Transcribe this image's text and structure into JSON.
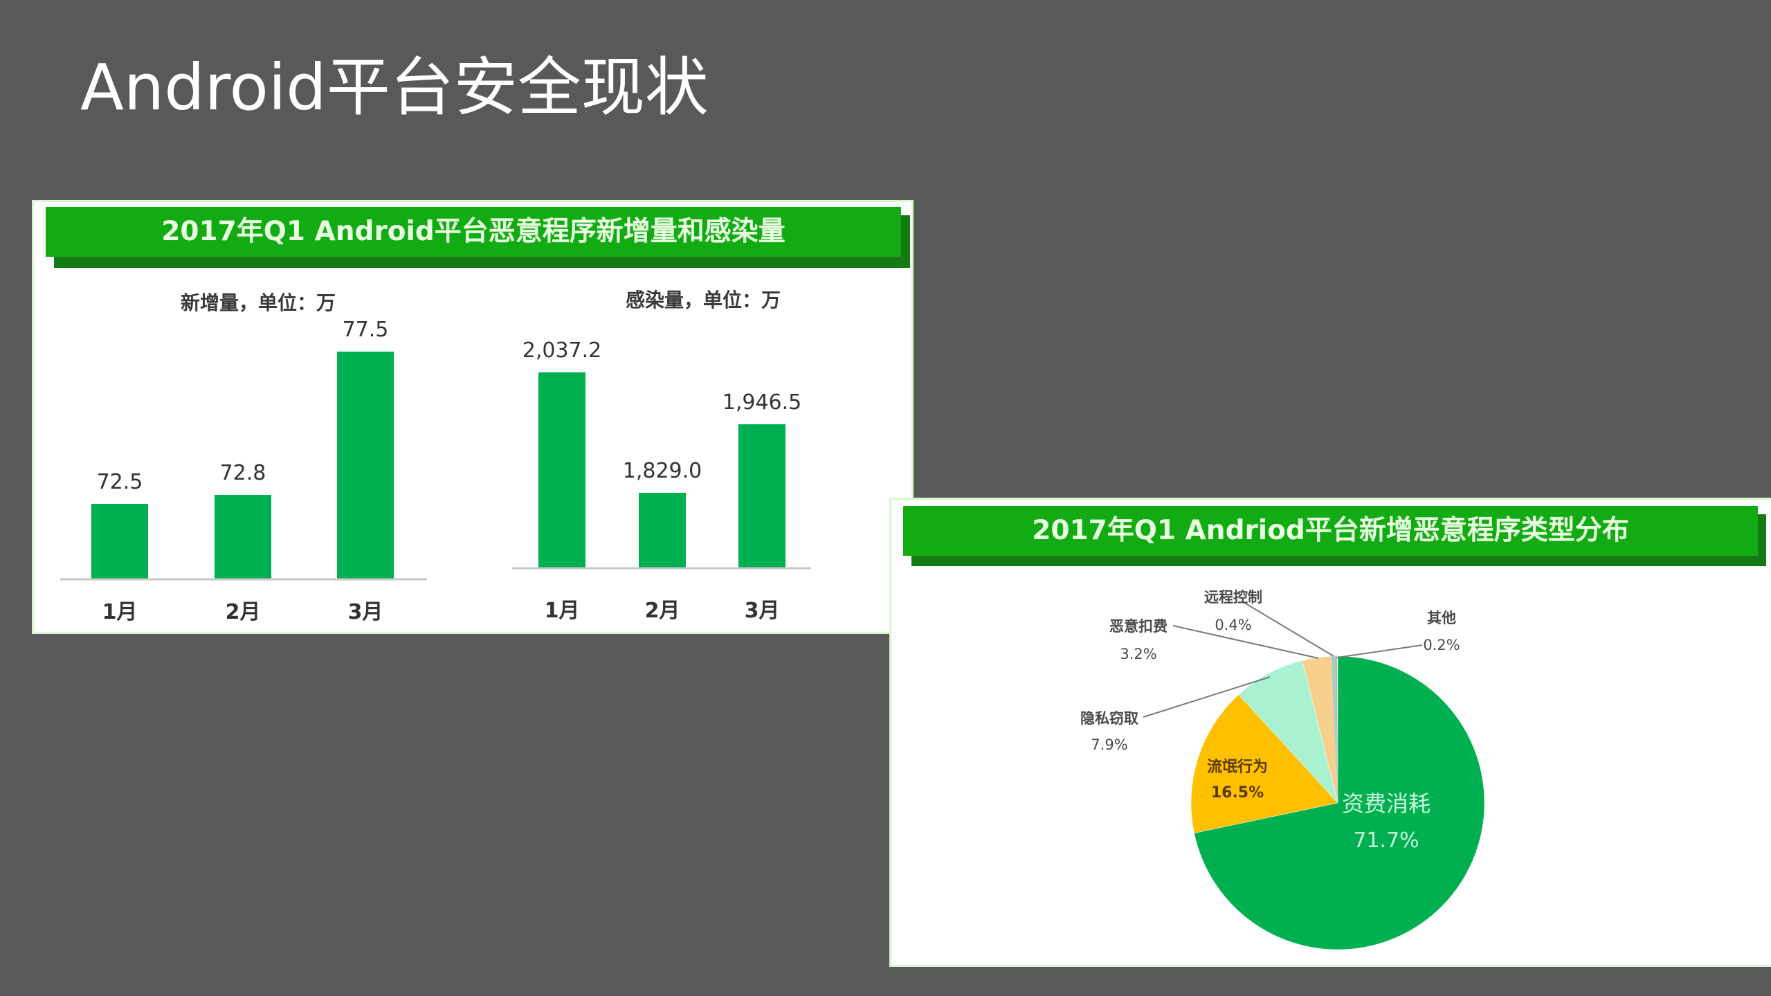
{
  "slide": {
    "title": "Android平台安全现状",
    "background": "#595959"
  },
  "colors": {
    "bar": "#00b050",
    "banner": "#13ab13",
    "banner_shadow": "#147a14",
    "axis": "#c8c8c8",
    "text": "#333333"
  },
  "chart_data": [
    {
      "type": "bar",
      "title": "2017年Q1 Android平台恶意程序新增量和感染量",
      "subtitle": "新增量，单位：万",
      "categories": [
        "1月",
        "2月",
        "3月"
      ],
      "values": [
        72.5,
        72.8,
        77.5
      ],
      "value_labels": [
        "72.5",
        "72.8",
        "77.5"
      ],
      "xlabel": "",
      "ylabel": "新增量（万）",
      "grid": false,
      "legend": null
    },
    {
      "type": "bar",
      "title": "2017年Q1 Android平台恶意程序新增量和感染量",
      "subtitle": "感染量，单位：万",
      "categories": [
        "1月",
        "2月",
        "3月"
      ],
      "values": [
        2037.2,
        1829.0,
        1946.5
      ],
      "value_labels": [
        "2,037.2",
        "1,829.0",
        "1,946.5"
      ],
      "xlabel": "",
      "ylabel": "感染量（万）",
      "grid": false,
      "legend": null
    },
    {
      "type": "pie",
      "title": "2017年Q1 Andriod平台新增恶意程序类型分布",
      "slices": [
        {
          "label": "资费消耗",
          "value": 71.7,
          "display": "71.7%",
          "color": "#00b050"
        },
        {
          "label": "流氓行为",
          "value": 16.5,
          "display": "16.5%",
          "color": "#ffc000"
        },
        {
          "label": "隐私窃取",
          "value": 7.9,
          "display": "7.9%",
          "color": "#a8f2d2"
        },
        {
          "label": "恶意扣费",
          "value": 3.2,
          "display": "3.2%",
          "color": "#f8d08e"
        },
        {
          "label": "远程控制",
          "value": 0.4,
          "display": "0.4%",
          "color": "#9ed0c0"
        },
        {
          "label": "其他",
          "value": 0.2,
          "display": "0.2%",
          "color": "#a0a0a0"
        }
      ],
      "start_angle": "12 o'clock, clockwise",
      "legend": null
    }
  ],
  "panels": {
    "bars": {
      "banner": "2017年Q1 Android平台恶意程序新增量和感染量",
      "left_subtitle": "新增量，单位：万",
      "right_subtitle": "感染量，单位：万"
    },
    "pie": {
      "banner": "2017年Q1 Andriod平台新增恶意程序类型分布"
    }
  }
}
